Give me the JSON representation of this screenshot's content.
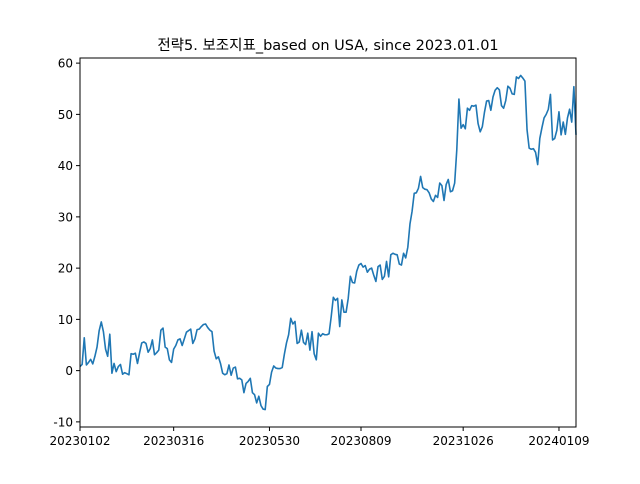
{
  "chart_data": {
    "type": "line",
    "title": "전략5. 보조지표_based on USA, since 2023.01.01",
    "xlabel": "",
    "ylabel": "",
    "x_tick_labels": [
      "20230102",
      "20230316",
      "20230530",
      "20230809",
      "20231026",
      "20240109"
    ],
    "y_ticks": [
      -10,
      0,
      10,
      20,
      30,
      40,
      50,
      60
    ],
    "ylim": [
      -11,
      61
    ],
    "grid": false,
    "legend": "none",
    "series": [
      {
        "color": "#1f77b4",
        "values": [
          0.8,
          1.2,
          6.4,
          1.1,
          1.6,
          2.2,
          1.3,
          2.8,
          4.6,
          7.8,
          9.5,
          7.6,
          4.2,
          2.8,
          7.1,
          -0.5,
          1.4,
          -0.2,
          0.8,
          1.2,
          -0.7,
          -0.4,
          -0.6,
          -0.8,
          3.3,
          3.2,
          3.4,
          1.4,
          3.5,
          5.4,
          5.6,
          5.3,
          3.6,
          4.3,
          6.0,
          3.1,
          3.5,
          4.0,
          7.9,
          8.3,
          4.6,
          4.3,
          2.1,
          1.6,
          4.2,
          4.9,
          6.0,
          6.2,
          4.9,
          6.2,
          7.5,
          7.8,
          8.1,
          5.3,
          6.2,
          8.0,
          8.1,
          8.6,
          9.0,
          9.1,
          8.4,
          7.9,
          7.6,
          3.8,
          2.3,
          2.7,
          1.4,
          -0.5,
          -0.8,
          -0.6,
          1.1,
          -0.9,
          0.5,
          0.7,
          -1.6,
          -1.5,
          -1.8,
          -4.3,
          -2.5,
          -2.1,
          -1.5,
          -4.3,
          -4.7,
          -6.3,
          -5.0,
          -6.8,
          -7.5,
          -7.6,
          -3.1,
          -2.7,
          -0.3,
          0.9,
          0.5,
          0.4,
          0.4,
          0.6,
          3.2,
          5.4,
          7.0,
          10.2,
          9.1,
          9.6,
          5.3,
          5.6,
          7.9,
          5.5,
          5.1,
          7.3,
          4.0,
          7.6,
          3.3,
          2.1,
          7.3,
          6.7,
          7.2,
          7.0,
          7.0,
          7.2,
          10.5,
          14.3,
          13.7,
          14.1,
          8.6,
          13.8,
          11.4,
          11.4,
          14.1,
          18.4,
          17.2,
          17.1,
          19.4,
          20.6,
          20.9,
          20.2,
          20.5,
          19.2,
          19.8,
          20.0,
          18.6,
          17.4,
          20.3,
          20.6,
          17.8,
          18.4,
          21.3,
          18.3,
          22.6,
          22.9,
          22.7,
          22.6,
          20.8,
          20.6,
          22.9,
          22.0,
          24.1,
          28.6,
          31.1,
          34.6,
          34.7,
          35.6,
          37.9,
          35.7,
          35.4,
          35.3,
          34.7,
          33.5,
          33.0,
          34.2,
          33.8,
          36.6,
          36.1,
          33.2,
          36.3,
          37.3,
          34.9,
          35.1,
          36.6,
          43.1,
          53.0,
          47.3,
          48.0,
          47.2,
          51.2,
          50.8,
          51.7,
          51.6,
          51.8,
          48.2,
          46.6,
          47.6,
          50.4,
          52.6,
          52.7,
          50.8,
          53.4,
          54.7,
          55.2,
          54.8,
          51.7,
          51.2,
          52.7,
          55.5,
          55.1,
          54.0,
          53.9,
          57.3,
          57.0,
          57.6,
          57.1,
          56.5,
          47.0,
          43.4,
          43.2,
          43.3,
          42.6,
          40.2,
          45.3,
          47.4,
          49.3,
          50.0,
          51.0,
          53.9,
          45.0,
          45.3,
          46.9,
          50.5,
          46.0,
          48.5,
          46.1,
          49.3,
          51.0,
          48.5,
          55.4,
          46.0
        ]
      }
    ]
  }
}
